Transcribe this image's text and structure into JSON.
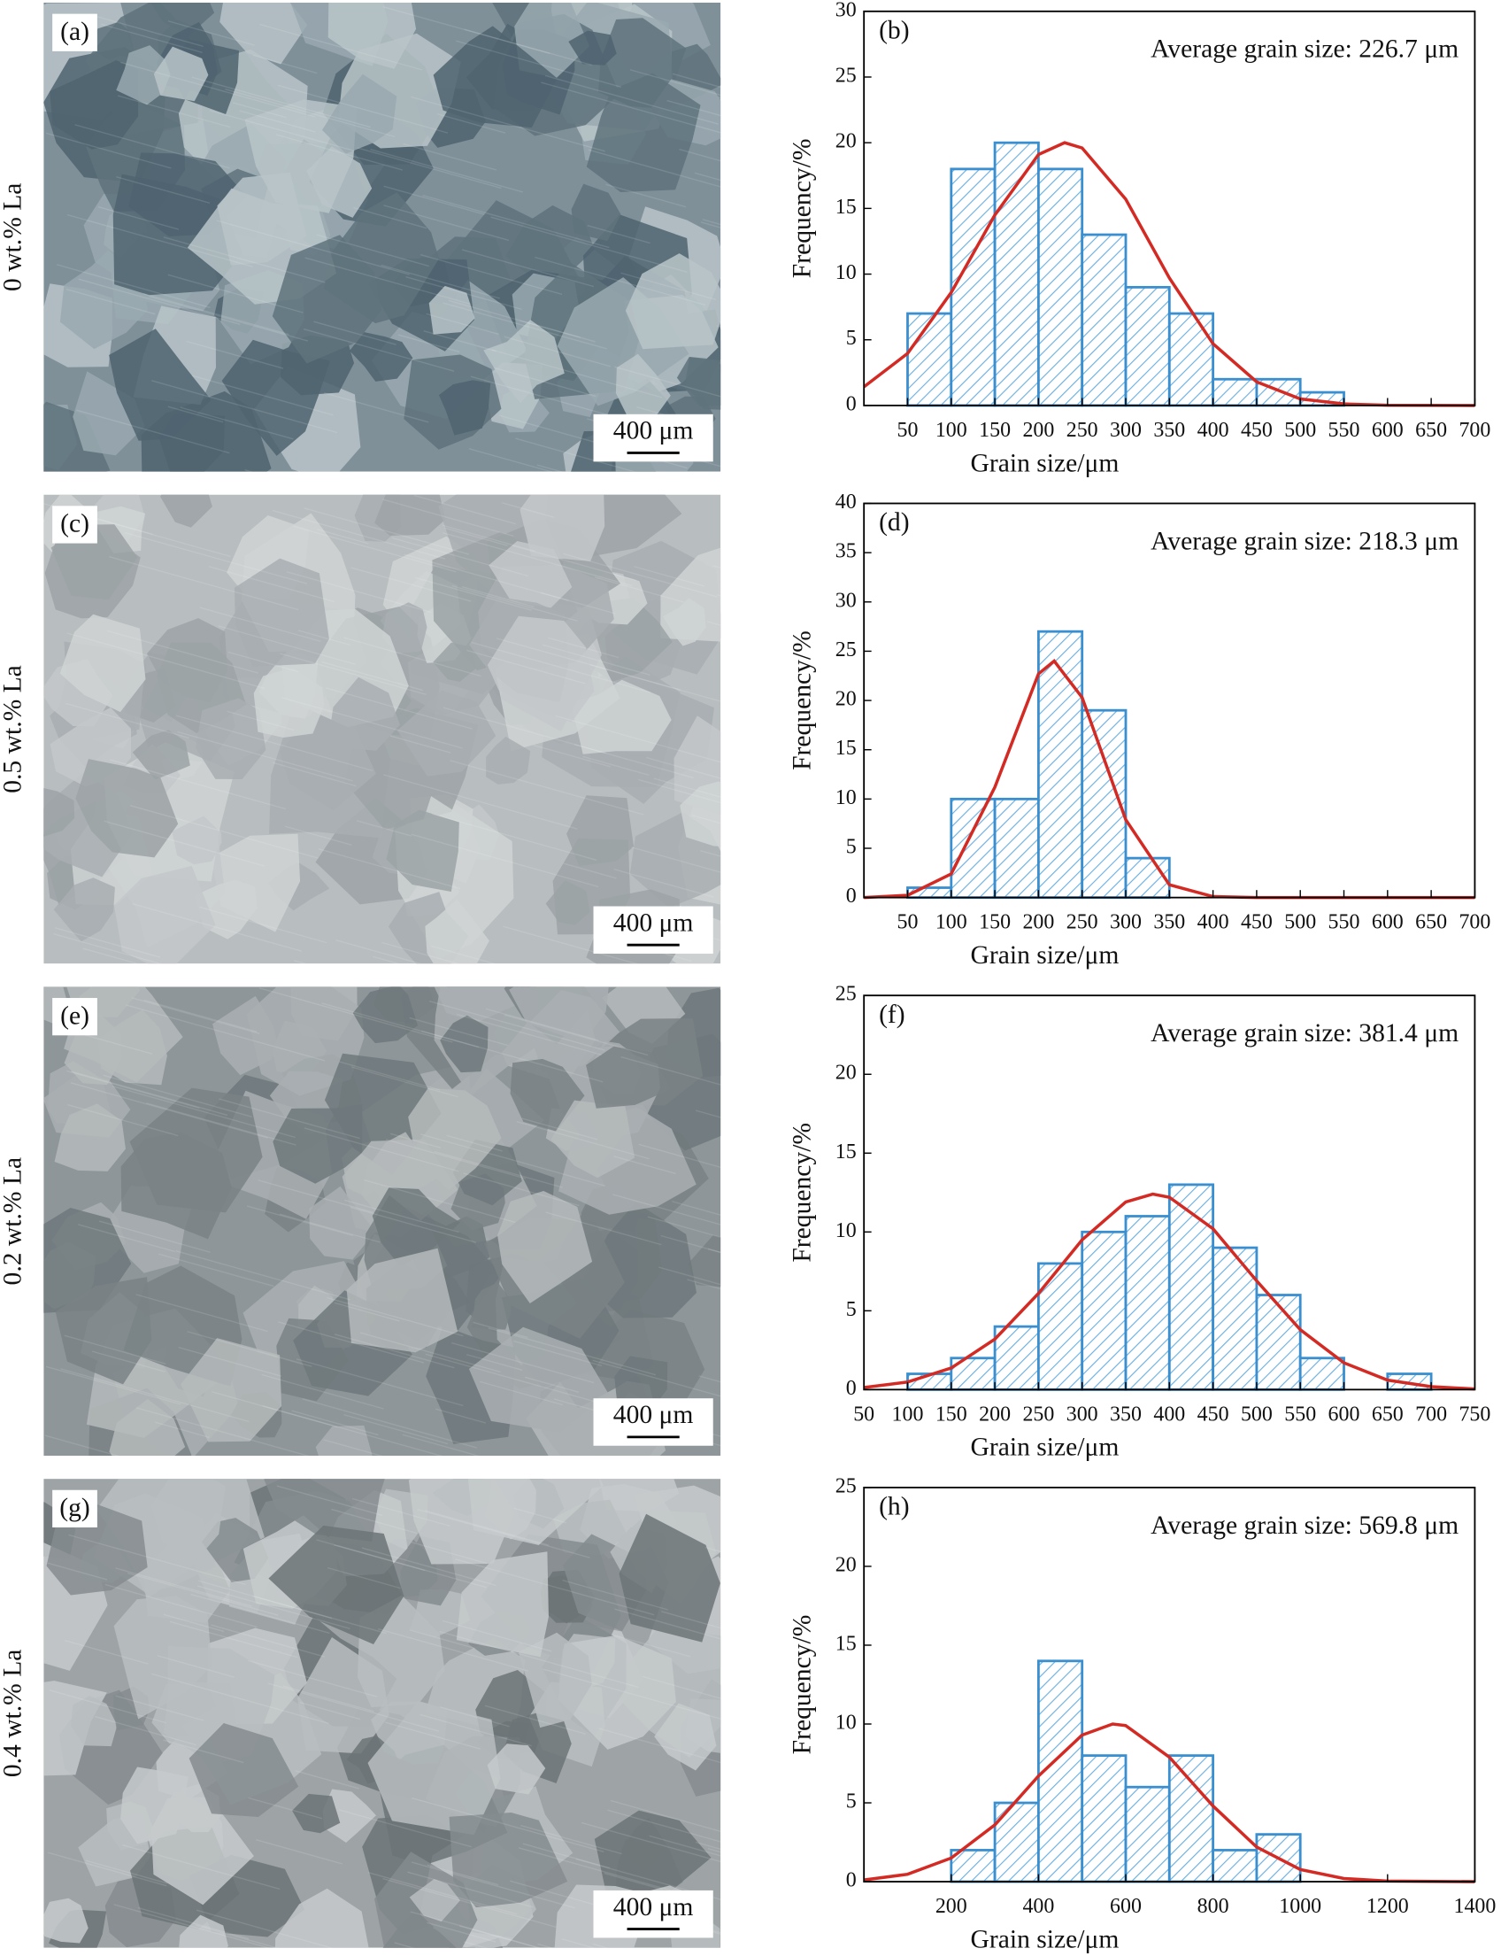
{
  "panels": [
    {
      "label": "(a)",
      "row_label": "0 wt.% La",
      "scale_bar": "400 μm"
    },
    {
      "label": "(c)",
      "row_label": "0.5 wt.% La",
      "scale_bar": "400 μm"
    },
    {
      "label": "(e)",
      "row_label": "0.2 wt.% La",
      "scale_bar": "400 μm"
    },
    {
      "label": "(g)",
      "row_label": "0.4 wt.% La",
      "scale_bar": "400 μm"
    }
  ],
  "chart_data": [
    {
      "type": "histogram",
      "panel_label": "(b)",
      "annotation": "Average grain size: 226.7 μm",
      "xlabel": "Grain size/μm",
      "ylabel": "Frequency/%",
      "color": "#3a8fd0",
      "bins": [
        50,
        100,
        150,
        200,
        250,
        300,
        350,
        400,
        450,
        500,
        550
      ],
      "values": [
        7,
        18,
        20,
        18,
        13,
        9,
        7,
        2,
        2,
        1
      ],
      "fit": {
        "color": "#d42a24",
        "x": [
          0,
          50,
          100,
          150,
          200,
          230,
          250,
          300,
          350,
          400,
          450,
          500,
          550,
          600,
          700
        ],
        "values": [
          1.42,
          3.96,
          8.6,
          14.5,
          19.1,
          20,
          19.6,
          15.7,
          9.7,
          4.7,
          1.8,
          0.5,
          0.12,
          0.02,
          0
        ]
      },
      "xlim": [
        0,
        700
      ],
      "ylim": [
        0,
        30
      ],
      "xticks": [
        50,
        100,
        150,
        200,
        250,
        300,
        350,
        400,
        450,
        500,
        550,
        600,
        650,
        700
      ],
      "yticks": [
        0,
        5,
        10,
        15,
        20,
        25,
        30
      ]
    },
    {
      "type": "histogram",
      "panel_label": "(d)",
      "annotation": "Average grain size: 218.3 μm",
      "xlabel": "Grain size/μm",
      "ylabel": "Frequency/%",
      "color": "#3a8fd0",
      "bins": [
        50,
        100,
        150,
        200,
        250,
        300,
        350
      ],
      "values": [
        1,
        10,
        10,
        27,
        19,
        4
      ],
      "fit": {
        "color": "#d42a24",
        "x": [
          0,
          50,
          100,
          150,
          200,
          218,
          250,
          300,
          350,
          400,
          450,
          700
        ],
        "values": [
          0,
          0.23,
          2.4,
          11.2,
          22.7,
          24,
          20.3,
          7.9,
          1.3,
          0.1,
          0,
          0
        ]
      },
      "xlim": [
        0,
        700
      ],
      "ylim": [
        0,
        40
      ],
      "xticks": [
        50,
        100,
        150,
        200,
        250,
        300,
        350,
        400,
        450,
        500,
        550,
        600,
        650,
        700
      ],
      "yticks": [
        0,
        5,
        10,
        15,
        20,
        25,
        30,
        35,
        40
      ]
    },
    {
      "type": "histogram",
      "panel_label": "(f)",
      "annotation": "Average grain size: 381.4 μm",
      "xlabel": "Grain size/μm",
      "ylabel": "Frequency/%",
      "color": "#3a8fd0",
      "bins": [
        100,
        150,
        200,
        250,
        300,
        350,
        400,
        450,
        500,
        550,
        600,
        650,
        700
      ],
      "values": [
        1,
        2,
        4,
        8,
        10,
        11,
        13,
        9,
        6,
        2,
        0,
        1
      ],
      "fit": {
        "color": "#d42a24",
        "x": [
          50,
          100,
          150,
          200,
          250,
          300,
          350,
          381,
          400,
          450,
          500,
          550,
          600,
          650,
          700,
          750
        ],
        "values": [
          0.13,
          0.48,
          1.37,
          3.2,
          6.1,
          9.5,
          11.9,
          12.4,
          12.2,
          10.2,
          6.9,
          3.8,
          1.7,
          0.6,
          0.19,
          0.04
        ]
      },
      "xlim": [
        50,
        750
      ],
      "ylim": [
        0,
        25
      ],
      "xticks": [
        50,
        100,
        150,
        200,
        250,
        300,
        350,
        400,
        450,
        500,
        550,
        600,
        650,
        700,
        750
      ],
      "yticks": [
        0,
        5,
        10,
        15,
        20,
        25
      ]
    },
    {
      "type": "histogram",
      "panel_label": "(h)",
      "annotation": "Average grain size: 569.8 μm",
      "xlabel": "Grain size/μm",
      "ylabel": "Frequency/%",
      "color": "#3a8fd0",
      "bins": [
        200,
        300,
        400,
        500,
        600,
        700,
        800,
        900,
        1000
      ],
      "values": [
        2,
        5,
        14,
        8,
        6,
        8,
        2,
        3
      ],
      "fit": {
        "color": "#d42a24",
        "x": [
          0,
          100,
          200,
          300,
          400,
          500,
          570,
          600,
          700,
          800,
          900,
          1000,
          1100,
          1200,
          1400
        ],
        "values": [
          0.11,
          0.47,
          1.5,
          3.6,
          6.7,
          9.3,
          10,
          9.9,
          7.9,
          4.8,
          2.2,
          0.77,
          0.2,
          0.04,
          0
        ]
      },
      "xlim": [
        0,
        1400
      ],
      "ylim": [
        0,
        25
      ],
      "xticks": [
        200,
        400,
        600,
        800,
        1000,
        1200,
        1400
      ],
      "yticks": [
        0,
        5,
        10,
        15,
        20,
        25
      ]
    }
  ]
}
